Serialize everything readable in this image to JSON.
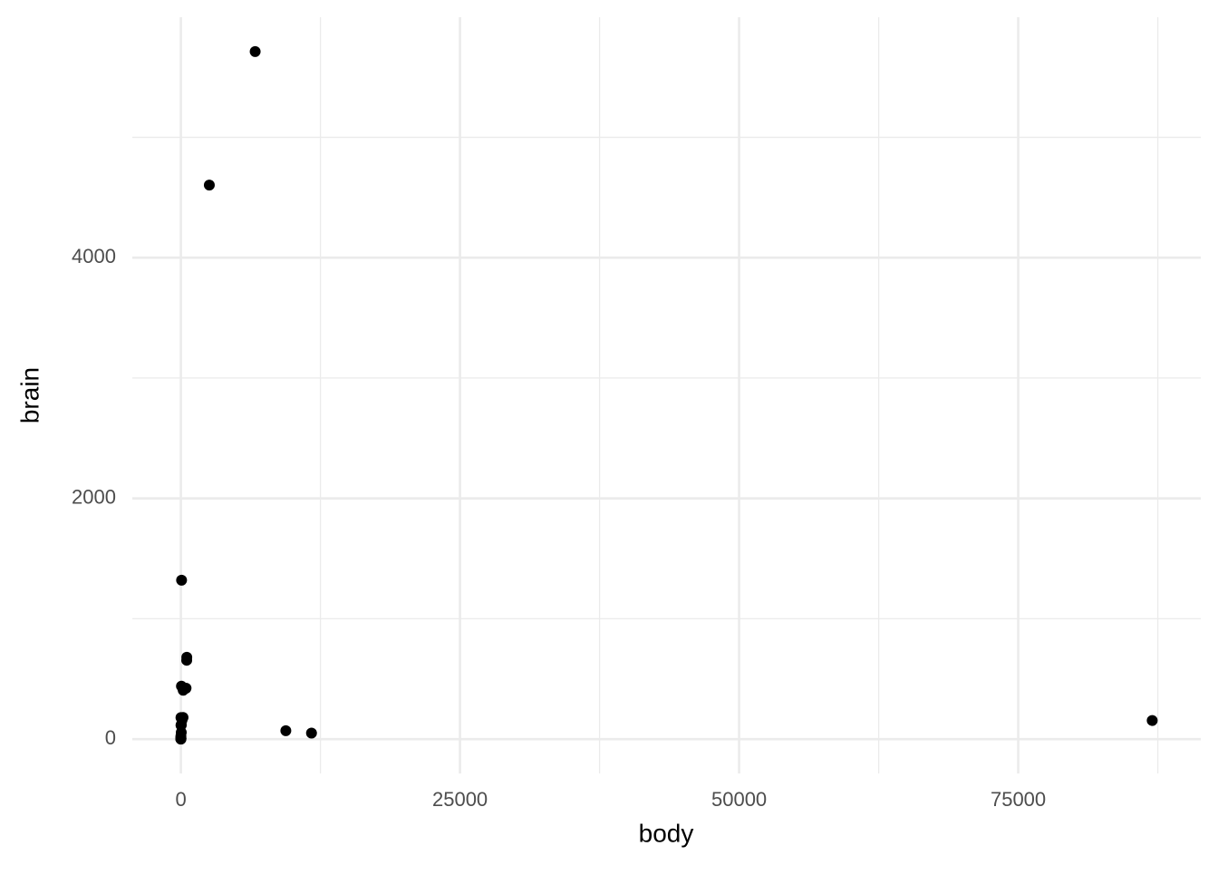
{
  "chart_data": {
    "type": "scatter",
    "x_label": "body",
    "y_label": "brain",
    "x": [
      1.35,
      465,
      36.33,
      27.66,
      1.04,
      11700,
      2547,
      187.1,
      521,
      10,
      3.3,
      529,
      207,
      62,
      6654,
      9400,
      6.8,
      35,
      0.12,
      0.023,
      2.5,
      55.5,
      100,
      52.16,
      0.28,
      87000,
      0.122,
      192
    ],
    "values": [
      8.1,
      423,
      119.5,
      115,
      5.5,
      50,
      4603,
      419,
      655,
      115,
      25.6,
      680,
      406,
      1320,
      5712,
      70,
      179,
      56,
      1,
      0.4,
      12.1,
      175,
      157,
      440,
      1.9,
      154.5,
      3,
      180
    ],
    "color": "#000000",
    "xlim": [
      -4350,
      91350
    ],
    "ylim": [
      -285.2,
      5997.6
    ],
    "xticks": [
      0,
      25000,
      50000,
      75000
    ],
    "yticks": [
      0,
      2000,
      4000
    ],
    "grid": true
  }
}
